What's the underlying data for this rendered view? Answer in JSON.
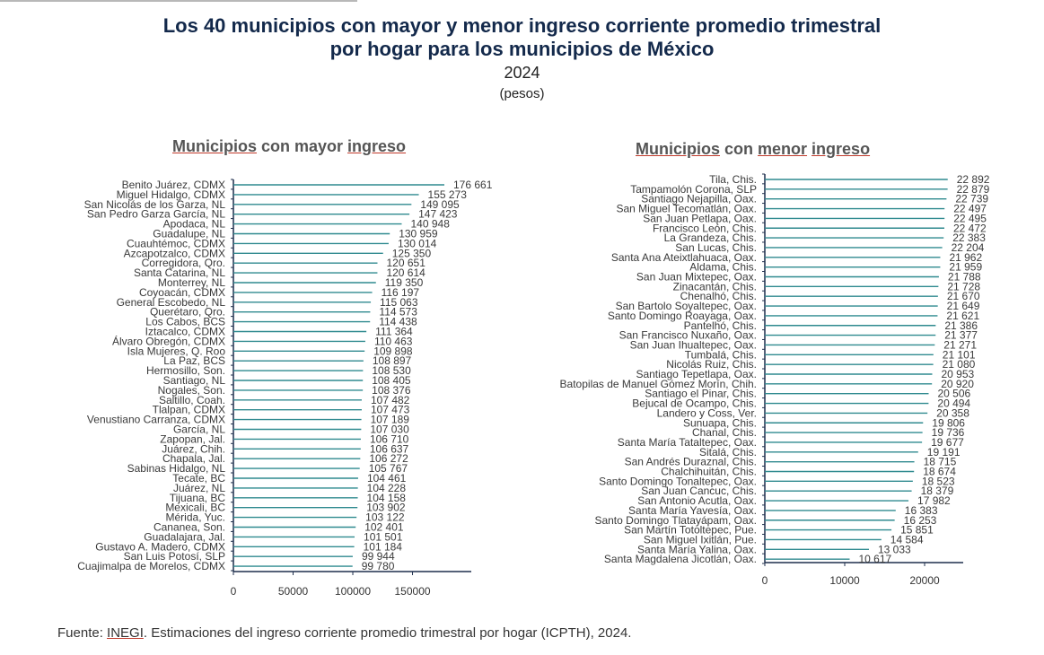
{
  "header": {
    "title_line1": "Los 40 municipios con mayor y menor ingreso corriente promedio trimestral",
    "title_line2": "por hogar para los municipios de México",
    "year": "2024",
    "unit": "(pesos)"
  },
  "panels": {
    "left_title": {
      "w1": "Municipios",
      "w2": " con mayor ",
      "w3": "ingreso"
    },
    "right_title": {
      "w1": "Municipios",
      "w2": " con ",
      "w3": "menor",
      "w4": " ",
      "w5": "ingreso"
    }
  },
  "source": {
    "prefix": "Fuente: ",
    "org": "INEGI",
    "rest": ". Estimaciones del ingreso corriente promedio trimestral por hogar (ICPTH), 2024."
  },
  "colors": {
    "bar": "#2f8a8f",
    "axis": "#1f2f4d",
    "title": "#13294b"
  },
  "chart_data": [
    {
      "type": "bar",
      "orientation": "horizontal",
      "title": "Municipios con mayor ingreso",
      "xlim": [
        0,
        200000
      ],
      "xticks": [
        0,
        50000,
        100000,
        150000
      ],
      "xtick_labels": [
        "0",
        "50000",
        "100000",
        "150000"
      ],
      "categories": [
        "Benito Juárez, CDMX",
        "Miguel Hidalgo, CDMX",
        "San Nicolás de los Garza, NL",
        "San Pedro Garza García, NL",
        "Apodaca, NL",
        "Guadalupe, NL",
        "Cuauhtémoc, CDMX",
        "Azcapotzalco, CDMX",
        "Corregidora, Qro.",
        "Santa Catarina, NL",
        "Monterrey, NL",
        "Coyoacán, CDMX",
        "General Escobedo, NL",
        "Querétaro, Qro.",
        "Los Cabos, BCS",
        "Iztacalco, CDMX",
        "Álvaro Obregón, CDMX",
        "Isla Mujeres, Q. Roo",
        "La Paz, BCS",
        "Hermosillo, Son.",
        "Santiago, NL",
        "Nogales, Son.",
        "Saltillo, Coah.",
        "Tlalpan, CDMX",
        "Venustiano Carranza, CDMX",
        "García, NL",
        "Zapopan, Jal.",
        "Juárez, Chih.",
        "Chapala, Jal.",
        "Sabinas Hidalgo, NL",
        "Tecate, BC",
        "Juárez, NL",
        "Tijuana, BC",
        "Mexicali, BC",
        "Mérida, Yuc.",
        "Cananea, Son.",
        "Guadalajara, Jal.",
        "Gustavo A. Madero, CDMX",
        "San Luis Potosí, SLP",
        "Cuajimalpa de Morelos, CDMX"
      ],
      "values": [
        176661,
        155273,
        149095,
        147423,
        140948,
        130959,
        130014,
        125350,
        120651,
        120614,
        119350,
        116197,
        115063,
        114573,
        114438,
        111364,
        110463,
        109898,
        108897,
        108530,
        108405,
        108376,
        107482,
        107473,
        107189,
        107030,
        106710,
        106637,
        106272,
        105767,
        104461,
        104228,
        104158,
        103902,
        103122,
        102401,
        101501,
        101184,
        99944,
        99780
      ],
      "labels": [
        "176 661",
        "155 273",
        "149 095",
        "147 423",
        "140 948",
        "130 959",
        "130 014",
        "125 350",
        "120 651",
        "120 614",
        "119 350",
        "116 197",
        "115 063",
        "114 573",
        "114 438",
        "111 364",
        "110 463",
        "109 898",
        "108 897",
        "108 530",
        "108 405",
        "108 376",
        "107 482",
        "107 473",
        "107 189",
        "107 030",
        "106 710",
        "106 637",
        "106 272",
        "105 767",
        "104 461",
        "104 228",
        "104 158",
        "103 902",
        "103 122",
        "102 401",
        "101 501",
        "101 184",
        "99 944",
        "99 780"
      ]
    },
    {
      "type": "bar",
      "orientation": "horizontal",
      "title": "Municipios con menor ingreso",
      "xlim": [
        0,
        25000
      ],
      "xticks": [
        0,
        10000,
        20000
      ],
      "xtick_labels": [
        "0",
        "10000",
        "20000"
      ],
      "categories": [
        "Tila, Chis.",
        "Tampamolón Corona, SLP",
        "Santiago Nejapilla, Oax.",
        "San Miguel Tecomatlán, Oax.",
        "San Juan Petlapa, Oax.",
        "Francisco León, Chis.",
        "La Grandeza, Chis.",
        "San Lucas, Chis.",
        "Santa Ana Ateixtlahuaca, Oax.",
        "Aldama, Chis.",
        "San Juan Mixtepec, Oax.",
        "Zinacantán, Chis.",
        "Chenalhó, Chis.",
        "San Bartolo Soyaltepec, Oax.",
        "Santo Domingo Roayaga, Oax.",
        "Pantelhó, Chis.",
        "San Francisco Nuxaño, Oax.",
        "San Juan Ihualtepec, Oax.",
        "Tumbalá, Chis.",
        "Nicolás Ruiz, Chis.",
        "Santiago Tepetlapa, Oax.",
        "Batopilas de Manuel Gómez Morín, Chih.",
        "Santiago el Pinar, Chis.",
        "Bejucal de Ocampo, Chis.",
        "Landero y Coss, Ver.",
        "Sunuapa, Chis.",
        "Chanal, Chis.",
        "Santa María Tataltepec, Oax.",
        "Sitalá, Chis.",
        "San Andrés Duraznal, Chis.",
        "Chalchihuitán, Chis.",
        "Santo Domingo Tonaltepec, Oax.",
        "San Juan Cancuc, Chis.",
        "San Antonio Acutla, Oax.",
        "Santa María Yavesía, Oax.",
        "Santo Domingo Tlatayápam, Oax.",
        "San Martín Totoltepec, Pue.",
        "San Miguel Ixitlán, Pue.",
        "Santa María Yalina, Oax.",
        "Santa Magdalena Jicotlán, Oax."
      ],
      "values": [
        22892,
        22879,
        22739,
        22497,
        22495,
        22472,
        22383,
        22204,
        21962,
        21959,
        21788,
        21728,
        21670,
        21649,
        21621,
        21386,
        21377,
        21271,
        21101,
        21080,
        20953,
        20920,
        20506,
        20494,
        20358,
        19806,
        19736,
        19677,
        19191,
        18715,
        18674,
        18523,
        18379,
        17982,
        16383,
        16253,
        15851,
        14584,
        13033,
        10617
      ],
      "labels": [
        "22 892",
        "22 879",
        "22 739",
        "22 497",
        "22 495",
        "22 472",
        "22 383",
        "22 204",
        "21 962",
        "21 959",
        "21 788",
        "21 728",
        "21 670",
        "21 649",
        "21 621",
        "21 386",
        "21 377",
        "21 271",
        "21 101",
        "21 080",
        "20 953",
        "20 920",
        "20 506",
        "20 494",
        "20 358",
        "19 806",
        "19 736",
        "19 677",
        "19 191",
        "18 715",
        "18 674",
        "18 523",
        "18 379",
        "17 982",
        "16 383",
        "16 253",
        "15 851",
        "14 584",
        "13 033",
        "10 617"
      ]
    }
  ]
}
